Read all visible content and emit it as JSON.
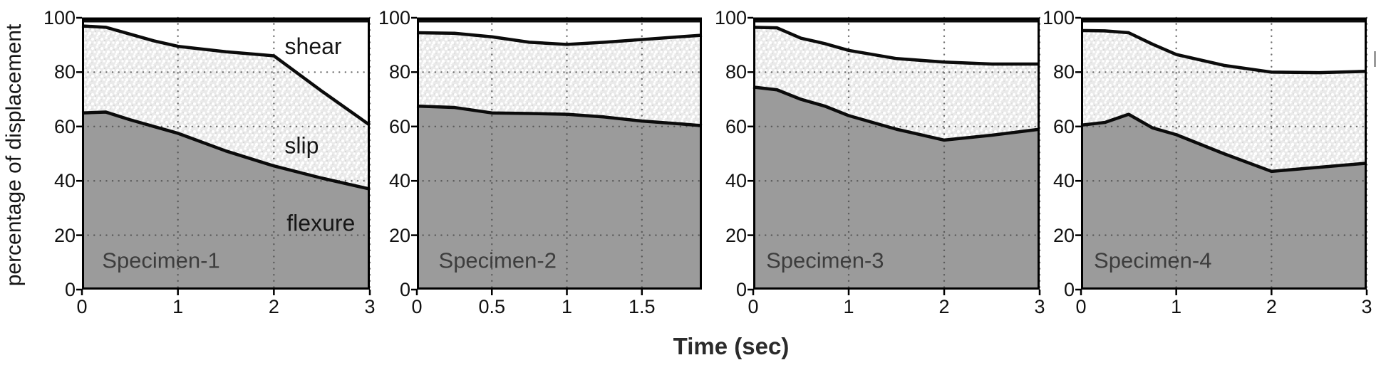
{
  "figure": {
    "xlabel": "Time (sec)",
    "ylabel": "percentage of displacement",
    "background": "#ffffff",
    "colors": {
      "flexure_fill": "#9b9b9b",
      "slip_fill": "#eaeaea",
      "shear_fill": "#ffffff",
      "boundary_line": "#0b0b0b",
      "grid_dots": "#4a4a4a",
      "tick_text": "#111111",
      "panel_label_text": "#3d3d3d",
      "region_label_text": "#161616"
    }
  },
  "chart_data": [
    {
      "type": "area",
      "title": "Specimen-1",
      "xlim": [
        0,
        3
      ],
      "ylim": [
        0,
        100
      ],
      "grid": "dotted",
      "x": [
        0,
        0.25,
        0.5,
        0.75,
        1,
        1.5,
        2,
        2.5,
        3
      ],
      "series": [
        {
          "name": "flexure",
          "boundary": [
            65,
            65.3,
            62.5,
            60,
            57.5,
            51,
            45.5,
            41,
            37
          ]
        },
        {
          "name": "slip",
          "boundary": [
            97,
            96.5,
            94,
            91.5,
            89.5,
            87.5,
            86,
            73,
            60.5
          ]
        },
        {
          "name": "shear",
          "boundary": [
            100,
            100,
            100,
            100,
            100,
            100,
            100,
            100,
            100
          ]
        }
      ],
      "xticks": [
        0,
        1,
        2,
        3
      ],
      "xtick_labels": [
        "0",
        "1",
        "2",
        "3"
      ],
      "yticks": [
        0,
        20,
        40,
        60,
        80,
        100
      ],
      "ytick_labels": [
        "0",
        "20",
        "40",
        "60",
        "80",
        "100"
      ],
      "panel_label": {
        "text": "Specimen-1",
        "x": 0.21,
        "y": 8
      },
      "annotations": [
        {
          "text": "shear",
          "x": 2.41,
          "y": 89.5
        },
        {
          "text": "slip",
          "x": 2.29,
          "y": 53
        },
        {
          "text": "flexure",
          "x": 2.49,
          "y": 24.5
        }
      ]
    },
    {
      "type": "area",
      "title": "Specimen-2",
      "xlim": [
        0,
        1.9
      ],
      "ylim": [
        0,
        100
      ],
      "grid": "dotted",
      "x": [
        0,
        0.25,
        0.5,
        0.75,
        1,
        1.25,
        1.5,
        1.75,
        1.9
      ],
      "series": [
        {
          "name": "flexure",
          "boundary": [
            67.5,
            67,
            65,
            64.8,
            64.5,
            63.5,
            62,
            61,
            60.3
          ]
        },
        {
          "name": "slip",
          "boundary": [
            94.5,
            94.3,
            93,
            91,
            90.2,
            91,
            92,
            93,
            93.6
          ]
        },
        {
          "name": "shear",
          "boundary": [
            100,
            100,
            100,
            100,
            100,
            100,
            100,
            100,
            100
          ]
        }
      ],
      "xticks": [
        0,
        0.5,
        1,
        1.5
      ],
      "xtick_labels": [
        "0",
        "0.5",
        "1",
        "1.5"
      ],
      "yticks": [
        0,
        20,
        40,
        60,
        80,
        100
      ],
      "ytick_labels": [
        "0",
        "20",
        "40",
        "60",
        "80",
        "100"
      ],
      "panel_label": {
        "text": "Specimen-2",
        "x": 0.145,
        "y": 8
      },
      "annotations": []
    },
    {
      "type": "area",
      "title": "Specimen-3",
      "xlim": [
        0,
        3
      ],
      "ylim": [
        0,
        100
      ],
      "grid": "dotted",
      "x": [
        0,
        0.25,
        0.5,
        0.75,
        1,
        1.5,
        2,
        2.5,
        3
      ],
      "series": [
        {
          "name": "flexure",
          "boundary": [
            74.5,
            73.5,
            70,
            67.5,
            64,
            59,
            55,
            56.8,
            59
          ]
        },
        {
          "name": "slip",
          "boundary": [
            96.5,
            96.3,
            92.5,
            90.5,
            88,
            85,
            83.7,
            83,
            83
          ]
        },
        {
          "name": "shear",
          "boundary": [
            100,
            100,
            100,
            100,
            100,
            100,
            100,
            100,
            100
          ]
        }
      ],
      "xticks": [
        0,
        1,
        2,
        3
      ],
      "xtick_labels": [
        "0",
        "1",
        "2",
        "3"
      ],
      "yticks": [
        0,
        20,
        40,
        60,
        80,
        100
      ],
      "ytick_labels": [
        "0",
        "20",
        "40",
        "60",
        "80",
        "100"
      ],
      "panel_label": {
        "text": "Specimen-3",
        "x": 0.135,
        "y": 8
      },
      "annotations": []
    },
    {
      "type": "area",
      "title": "Specimen-4",
      "xlim": [
        0,
        3
      ],
      "ylim": [
        0,
        100
      ],
      "grid": "dotted",
      "x": [
        0,
        0.25,
        0.5,
        0.75,
        1,
        1.5,
        2,
        2.5,
        3
      ],
      "series": [
        {
          "name": "flexure",
          "boundary": [
            60.5,
            61.5,
            64.5,
            59.5,
            57,
            50,
            43.5,
            45,
            46.5
          ]
        },
        {
          "name": "slip",
          "boundary": [
            95.3,
            95.2,
            94.5,
            90.3,
            86.5,
            82.5,
            80,
            79.8,
            80.3
          ]
        },
        {
          "name": "shear",
          "boundary": [
            100,
            100,
            100,
            100,
            100,
            100,
            100,
            100,
            100
          ]
        }
      ],
      "xticks": [
        0,
        1,
        2,
        3
      ],
      "xtick_labels": [
        "0",
        "1",
        "2",
        "3"
      ],
      "yticks": [
        0,
        20,
        40,
        60,
        80,
        100
      ],
      "ytick_labels": [
        "0",
        "20",
        "40",
        "60",
        "80",
        "100"
      ],
      "panel_label": {
        "text": "Specimen-4",
        "x": 0.135,
        "y": 8
      },
      "annotations": []
    }
  ]
}
